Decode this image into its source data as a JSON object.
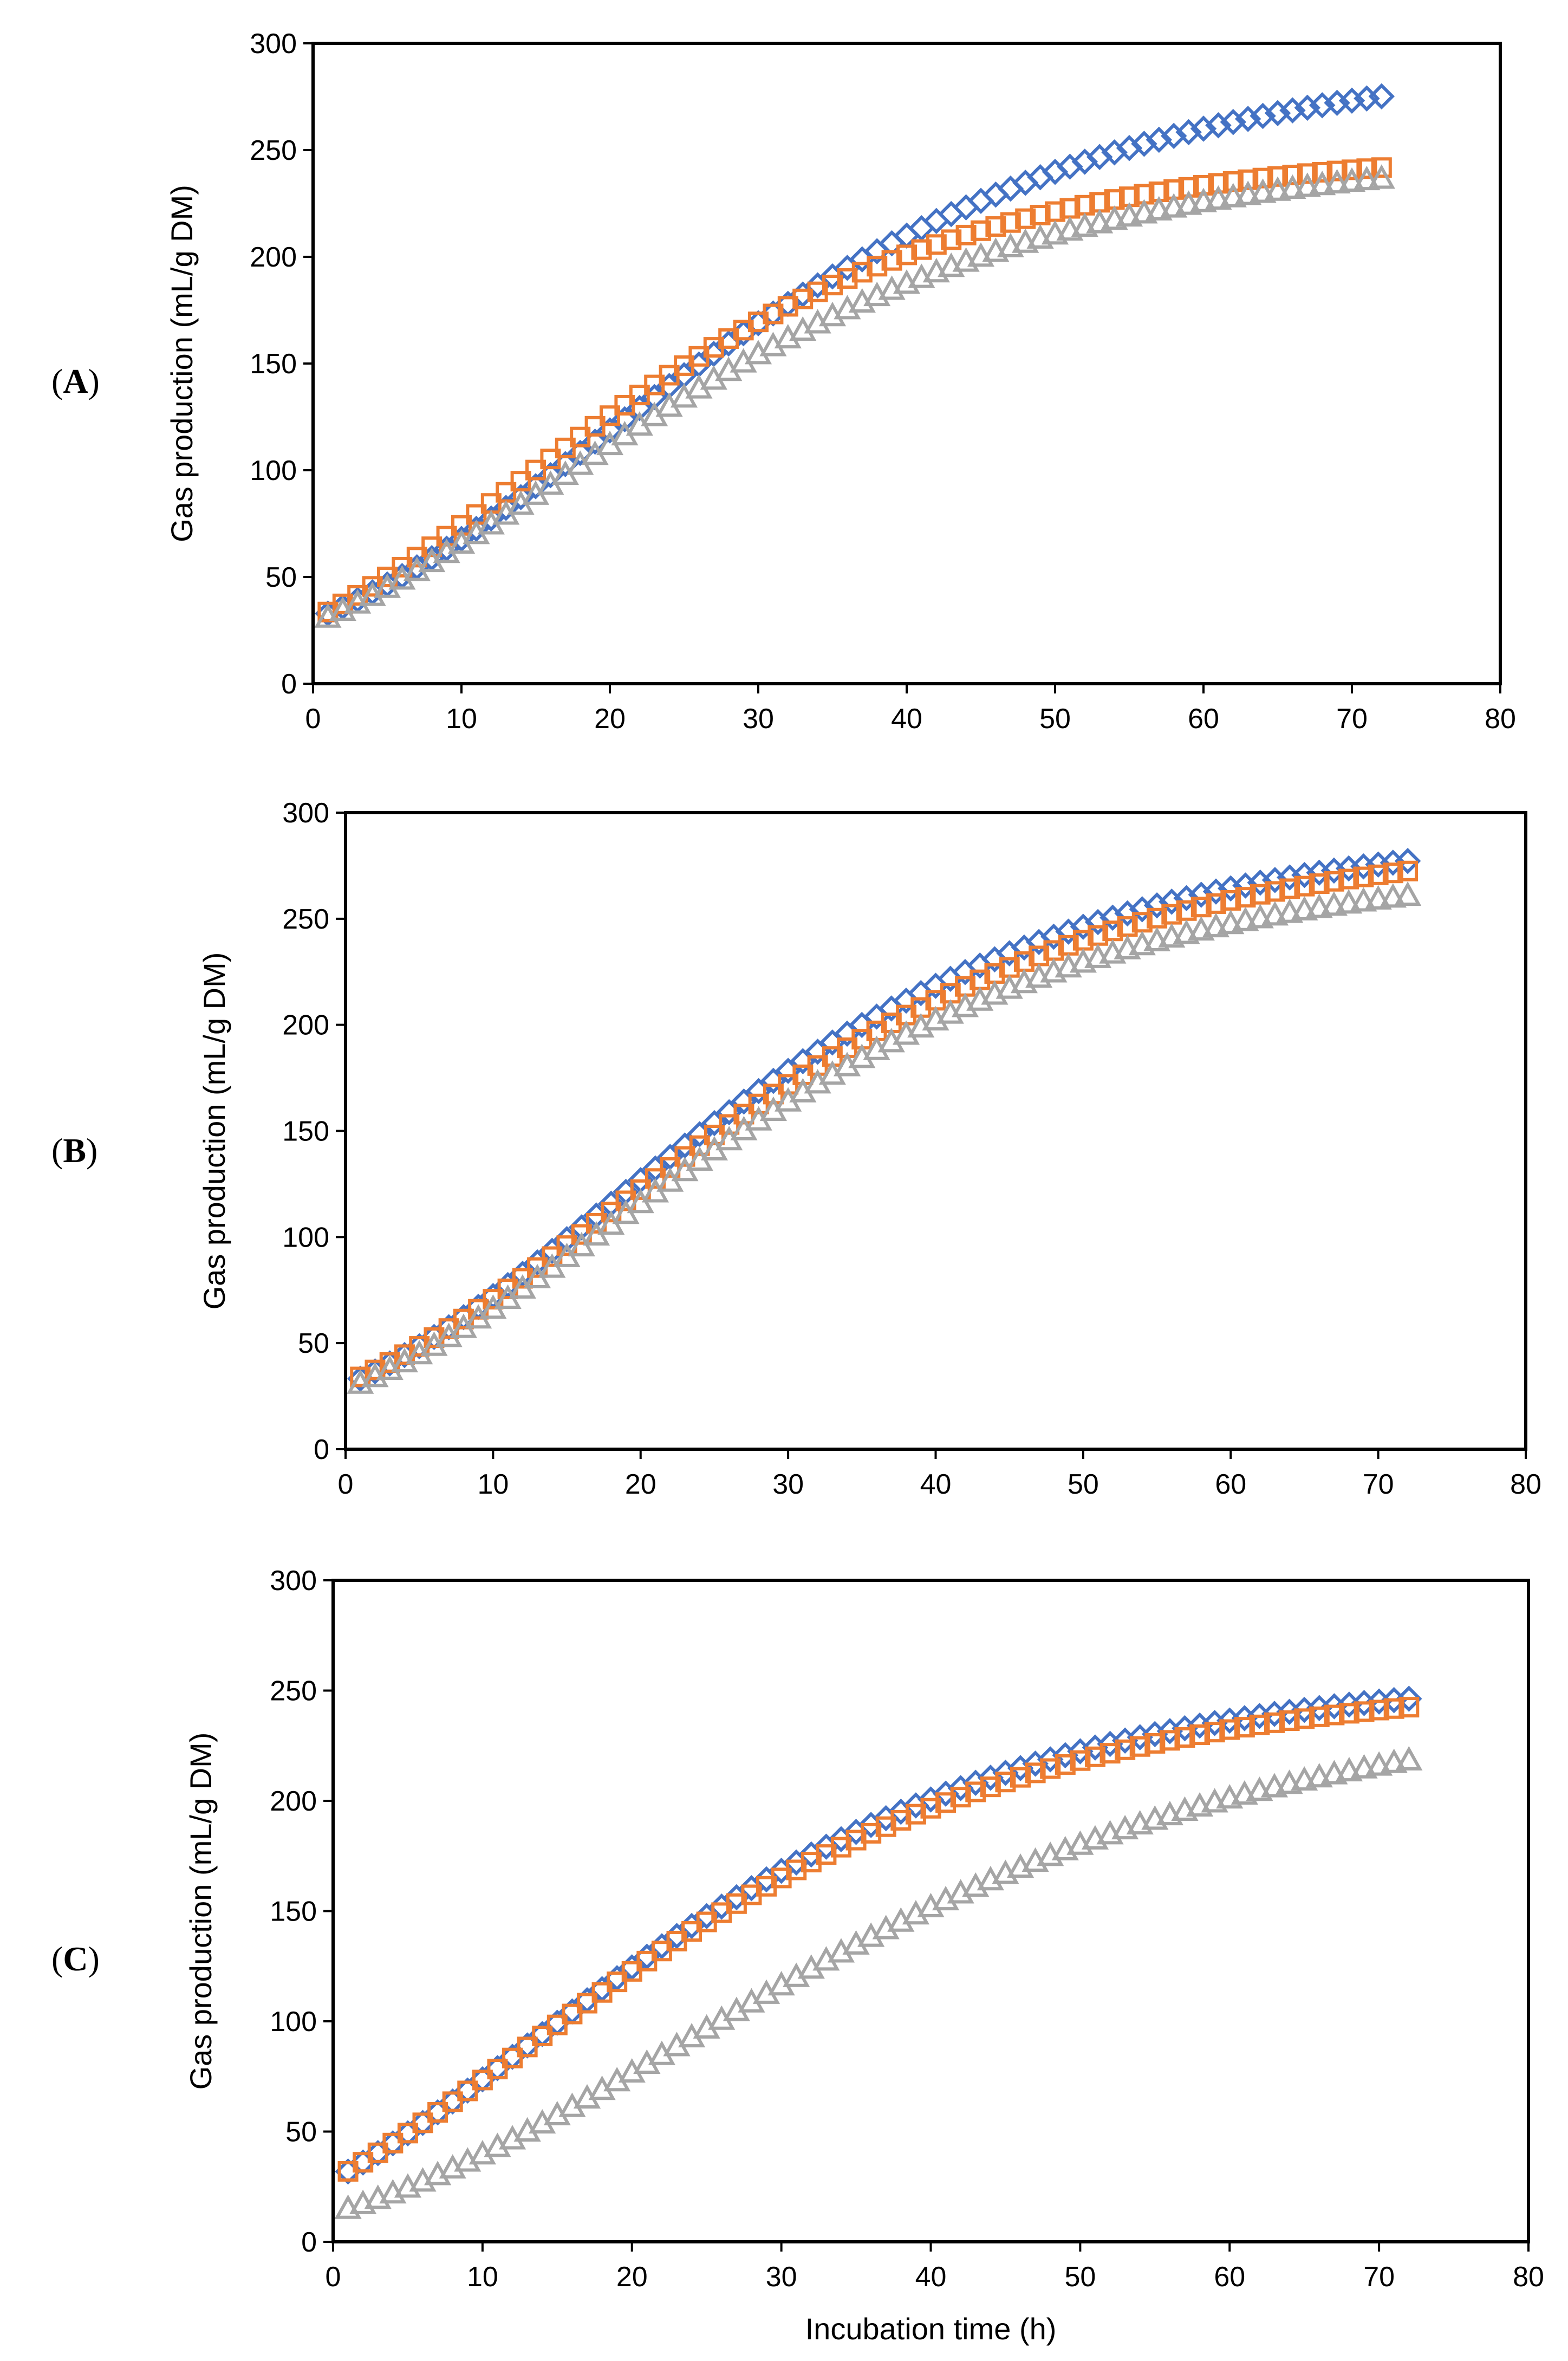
{
  "chart_data": [
    {
      "type": "scatter",
      "panel_label": "A",
      "title": "",
      "xlabel": "",
      "ylabel": "Gas production (mL/g DM)",
      "xlim": [
        0,
        80
      ],
      "ylim": [
        0,
        300
      ],
      "xticks": [
        0,
        10,
        20,
        30,
        40,
        50,
        60,
        70,
        80
      ],
      "yticks": [
        0,
        50,
        100,
        150,
        200,
        250,
        300
      ],
      "grid": false,
      "legend": "none",
      "x_start": 1,
      "x_end": 72,
      "x_step": 1,
      "series": [
        {
          "marker": "diamond",
          "color": "#4472C4",
          "asymptote": 286,
          "rate": 0.05,
          "lag": 2.6,
          "offset": 30
        },
        {
          "marker": "square",
          "color": "#ED7D31",
          "asymptote": 248,
          "rate": 0.0572,
          "lag": 2.2,
          "offset": 30
        },
        {
          "marker": "triangle",
          "color": "#A5A5A5",
          "asymptote": 247,
          "rate": 0.0515,
          "lag": 2.3,
          "offset": 28
        }
      ]
    },
    {
      "type": "scatter",
      "panel_label": "B",
      "title": "",
      "xlabel": "",
      "ylabel": "Gas production (mL/g DM)",
      "xlim": [
        0,
        80
      ],
      "ylim": [
        0,
        300
      ],
      "xticks": [
        0,
        10,
        20,
        30,
        40,
        50,
        60,
        70,
        80
      ],
      "yticks": [
        0,
        50,
        100,
        150,
        200,
        250,
        300
      ],
      "grid": false,
      "legend": "none",
      "x_start": 1,
      "x_end": 72,
      "x_step": 1,
      "series": [
        {
          "marker": "diamond",
          "color": "#4472C4",
          "asymptote": 286,
          "rate": 0.053,
          "lag": 2.5,
          "offset": 30
        },
        {
          "marker": "square",
          "color": "#ED7D31",
          "asymptote": 282,
          "rate": 0.051,
          "lag": 2.5,
          "offset": 31
        },
        {
          "marker": "triangle",
          "color": "#A5A5A5",
          "asymptote": 272,
          "rate": 0.051,
          "lag": 2.5,
          "offset": 28
        }
      ]
    },
    {
      "type": "scatter",
      "panel_label": "C",
      "title": "",
      "xlabel": "Incubation time (h)",
      "ylabel": "Gas production (mL/g DM)",
      "xlim": [
        0,
        80
      ],
      "ylim": [
        0,
        300
      ],
      "xticks": [
        0,
        10,
        20,
        30,
        40,
        50,
        60,
        70,
        80
      ],
      "yticks": [
        0,
        50,
        100,
        150,
        200,
        250,
        300
      ],
      "grid": false,
      "legend": "none",
      "x_start": 1,
      "x_end": 72,
      "x_step": 1,
      "series": [
        {
          "marker": "diamond",
          "color": "#4472C4",
          "asymptote": 266,
          "rate": 0.0527,
          "lag": 2.0,
          "offset": 28
        },
        {
          "marker": "square",
          "color": "#ED7D31",
          "asymptote": 267,
          "rate": 0.051,
          "lag": 1.9,
          "offset": 28
        },
        {
          "marker": "triangle",
          "color": "#A5A5A5",
          "asymptote": 250,
          "rate": 0.0435,
          "lag": 2.7,
          "offset": 13
        }
      ]
    }
  ]
}
